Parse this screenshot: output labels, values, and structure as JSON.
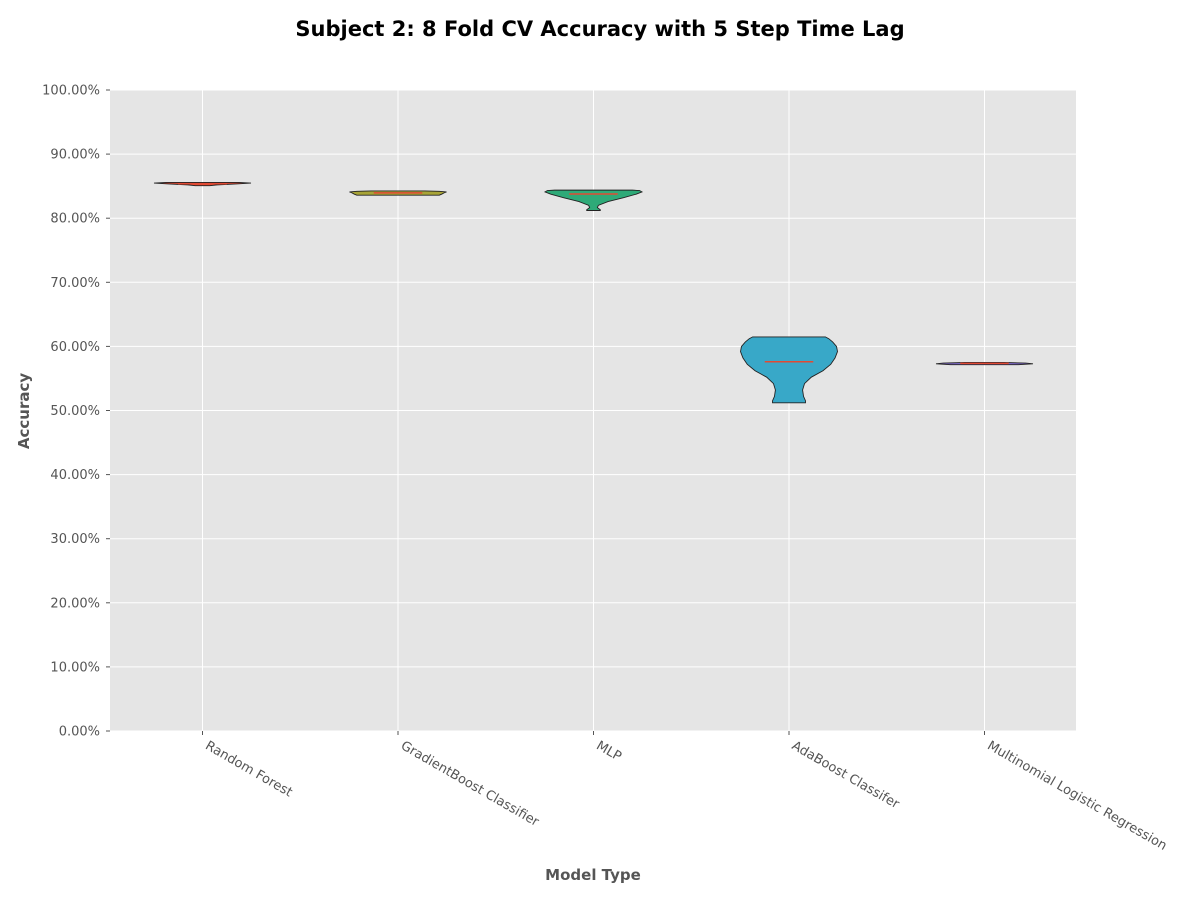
{
  "chart_data": {
    "type": "violin",
    "title": "Subject 2: 8 Fold CV Accuracy with 5 Step Time Lag",
    "xlabel": "Model Type",
    "ylabel": "Accuracy",
    "ylim": [
      0,
      1
    ],
    "y_ticks": [
      0,
      0.1,
      0.2,
      0.3,
      0.4,
      0.5,
      0.6,
      0.7,
      0.8,
      0.9,
      1.0
    ],
    "y_tick_labels": [
      "0.00%",
      "10.00%",
      "20.00%",
      "30.00%",
      "40.00%",
      "50.00%",
      "60.00%",
      "70.00%",
      "80.00%",
      "90.00%",
      "100.00%"
    ],
    "grid": true,
    "categories": [
      "Random Forest",
      "GradientBoost Classifier",
      "MLP",
      "AdaBoost Classifer",
      "Multinomial Logistic Regression"
    ],
    "series": [
      {
        "color": "#e24a33",
        "min": 0.8507,
        "max": 0.8558,
        "median": 0.8538,
        "profile": [
          [
            0.8507,
            0.15
          ],
          [
            0.852,
            0.3
          ],
          [
            0.8535,
            0.7
          ],
          [
            0.8548,
            1.0
          ],
          [
            0.8558,
            0.75
          ]
        ]
      },
      {
        "color": "#a8a437",
        "min": 0.8359,
        "max": 0.8425,
        "median": 0.8395,
        "profile": [
          [
            0.8359,
            0.85
          ],
          [
            0.8375,
            0.9
          ],
          [
            0.8395,
            0.95
          ],
          [
            0.841,
            1.0
          ],
          [
            0.842,
            0.85
          ],
          [
            0.8425,
            0.55
          ]
        ]
      },
      {
        "color": "#2eaa78",
        "min": 0.812,
        "max": 0.8438,
        "median": 0.8378,
        "profile": [
          [
            0.812,
            0.14
          ],
          [
            0.8132,
            0.14
          ],
          [
            0.8165,
            0.08
          ],
          [
            0.82,
            0.1
          ],
          [
            0.826,
            0.3
          ],
          [
            0.832,
            0.62
          ],
          [
            0.8375,
            0.88
          ],
          [
            0.841,
            1.0
          ],
          [
            0.8432,
            0.95
          ],
          [
            0.8438,
            0.8
          ]
        ]
      },
      {
        "color": "#38a8c8",
        "min": 0.512,
        "max": 0.6148,
        "median": 0.576,
        "profile": [
          [
            0.512,
            0.34
          ],
          [
            0.515,
            0.34
          ],
          [
            0.522,
            0.3
          ],
          [
            0.532,
            0.28
          ],
          [
            0.542,
            0.32
          ],
          [
            0.552,
            0.46
          ],
          [
            0.562,
            0.7
          ],
          [
            0.572,
            0.86
          ],
          [
            0.582,
            0.95
          ],
          [
            0.592,
            1.0
          ],
          [
            0.6,
            0.98
          ],
          [
            0.607,
            0.9
          ],
          [
            0.612,
            0.82
          ],
          [
            0.6148,
            0.75
          ]
        ]
      },
      {
        "color": "#7e68c8",
        "min": 0.5715,
        "max": 0.575,
        "median": 0.5735,
        "profile": [
          [
            0.5715,
            0.7
          ],
          [
            0.5728,
            1.0
          ],
          [
            0.574,
            0.85
          ],
          [
            0.575,
            0.4
          ]
        ]
      }
    ]
  }
}
